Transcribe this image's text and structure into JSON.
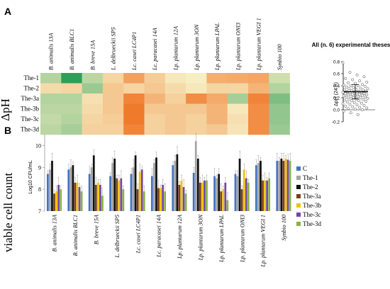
{
  "panel_a_label": "A",
  "panel_b_label": "B",
  "ylabel_a": "ΔpH",
  "ylabel_b": "viable cell count",
  "strains": [
    "B. animalis 13A",
    "B. animalis BLC1",
    "B. breve 15A",
    "L. delbrueckii SP5",
    "Lc. casei LC4P1",
    "Lc. paracasei 14A",
    "Lp. plantarum 12A",
    "Lp. plantarum 3ON",
    "Lp. plantarum LPAL",
    "Lp. plantarum ONI3",
    "Lp. plantarum VEGI 1",
    "Synbio 100"
  ],
  "heatmap": {
    "row_labels": [
      "The-1",
      "The-2",
      "The-3a",
      "The-3b",
      "The-3c",
      "The-3d"
    ],
    "values": [
      [
        0.42,
        0.75,
        0.4,
        0.12,
        -0.15,
        0.08,
        0.22,
        0.25,
        -0.08,
        -0.1,
        -0.12,
        0.35
      ],
      [
        0.15,
        0.12,
        0.48,
        0.05,
        0.12,
        0.05,
        0.15,
        0.22,
        0.12,
        0.12,
        -0.05,
        0.42
      ],
      [
        0.42,
        0.42,
        0.18,
        0.05,
        -0.3,
        -0.05,
        0.1,
        -0.25,
        -0.1,
        0.45,
        -0.3,
        0.55
      ],
      [
        0.4,
        0.4,
        0.15,
        0.05,
        -0.35,
        0.05,
        0.05,
        0.05,
        -0.05,
        0.22,
        -0.25,
        0.5
      ],
      [
        0.38,
        0.42,
        0.12,
        0.08,
        -0.35,
        0.1,
        0.05,
        0.1,
        -0.05,
        0.18,
        -0.25,
        0.5
      ],
      [
        0.4,
        0.45,
        0.1,
        0.1,
        -0.3,
        0.1,
        0.05,
        0.1,
        0.05,
        0.2,
        -0.25,
        0.48
      ]
    ]
  },
  "inset": {
    "title": "All (n. 6) experimental theses",
    "ylabel": "ΔpH (24 h)",
    "yticks": [
      "0.8",
      "0.6",
      "0.4",
      "0.2",
      "0.0",
      "-0.2"
    ],
    "ymin": -0.2,
    "ymax": 0.8,
    "mean": 0.3,
    "sd": 0.12
  },
  "chart_data": [
    {
      "type": "heatmap",
      "title": "",
      "ylabel": "ΔpH",
      "rows": [
        "The-1",
        "The-2",
        "The-3a",
        "The-3b",
        "The-3c",
        "The-3d"
      ],
      "columns": [
        "B. animalis 13A",
        "B. animalis BLC1",
        "B. breve 15A",
        "L. delbrueckii SP5",
        "Lc. casei LC4P1",
        "Lc. paracasei 14A",
        "Lp. plantarum 12A",
        "Lp. plantarum 3ON",
        "Lp. plantarum LPAL",
        "Lp. plantarum ONI3",
        "Lp. plantarum VEGI 1",
        "Synbio 100"
      ],
      "colors": {
        "low": "#f07a2c",
        "mid": "#f7eec3",
        "high": "#2f9e58"
      }
    },
    {
      "type": "scatter",
      "title": "All (n. 6) experimental theses",
      "ylabel": "ΔpH (24 h)",
      "ylim": [
        -0.2,
        0.8
      ],
      "mean": 0.3,
      "n_points": 72,
      "point_values": [
        0.78,
        0.62,
        0.58,
        0.55,
        0.52,
        0.5,
        0.48,
        0.46,
        0.45,
        0.44,
        0.42,
        0.41,
        0.4,
        0.4,
        0.39,
        0.38,
        0.37,
        0.36,
        0.35,
        0.35,
        0.34,
        0.33,
        0.33,
        0.32,
        0.31,
        0.31,
        0.3,
        0.3,
        0.29,
        0.29,
        0.28,
        0.28,
        0.27,
        0.27,
        0.26,
        0.26,
        0.25,
        0.25,
        0.24,
        0.24,
        0.23,
        0.22,
        0.22,
        0.21,
        0.21,
        0.2,
        0.2,
        0.19,
        0.18,
        0.18,
        0.17,
        0.16,
        0.15,
        0.15,
        0.14,
        0.13,
        0.12,
        0.11,
        0.1,
        0.09,
        0.08,
        0.07,
        0.06,
        0.05,
        0.04,
        0.03,
        0.02,
        0.01,
        0.0,
        -0.02,
        -0.05,
        -0.08
      ]
    },
    {
      "type": "bar",
      "title": "",
      "ylabel": "Log10 CFU/mL",
      "ylim": [
        7,
        10.5
      ],
      "yticks": [
        7,
        8,
        9,
        10
      ],
      "categories": [
        "B. animalis 13A",
        "B. animalis BLC1",
        "B. breve 15A",
        "L. delbrueckii SP5",
        "Lc. casei LC4P1",
        "Lc. paracasei 14A",
        "Lp. plantarum 12A",
        "Lp. plantarum 3ON",
        "Lp. plantarum LPAL",
        "Lp. plantarum ONI3",
        "Lp. plantarum VEGI 1",
        "Synbio 100"
      ],
      "legend_position": "right",
      "series": [
        {
          "name": "C",
          "color": "#4472c4",
          "values": [
            8.7,
            8.9,
            8.7,
            8.6,
            8.7,
            8.6,
            9.1,
            8.75,
            8.6,
            8.7,
            9.1,
            9.3
          ]
        },
        {
          "name": "The-1",
          "color": "#a5a5a5",
          "values": [
            8.9,
            9.0,
            9.0,
            9.2,
            9.0,
            9.2,
            9.3,
            10.2,
            8.5,
            8.6,
            9.2,
            9.3
          ]
        },
        {
          "name": "The-2",
          "color": "#111111",
          "values": [
            9.3,
            9.1,
            9.55,
            9.4,
            9.55,
            9.45,
            9.6,
            9.4,
            8.7,
            9.4,
            9.3,
            9.4
          ]
        },
        {
          "name": "The-3a",
          "color": "#7b3f1a",
          "values": [
            7.8,
            8.3,
            8.2,
            8.5,
            8.0,
            8.05,
            8.2,
            8.3,
            7.9,
            8.0,
            8.4,
            9.3
          ]
        },
        {
          "name": "The-3b",
          "color": "#f2c200",
          "values": [
            7.9,
            8.3,
            8.3,
            8.4,
            8.8,
            8.05,
            8.4,
            8.3,
            8.0,
            8.9,
            8.4,
            9.4
          ]
        },
        {
          "name": "The-3c",
          "color": "#7049a3",
          "values": [
            8.2,
            8.1,
            8.2,
            8.5,
            8.9,
            8.2,
            8.1,
            8.4,
            8.3,
            8.5,
            8.4,
            9.35
          ]
        },
        {
          "name": "The-3d",
          "color": "#8ab04a",
          "values": [
            8.0,
            7.9,
            7.7,
            8.0,
            7.9,
            7.9,
            7.8,
            8.4,
            7.5,
            8.3,
            8.5,
            9.3
          ]
        }
      ]
    }
  ]
}
